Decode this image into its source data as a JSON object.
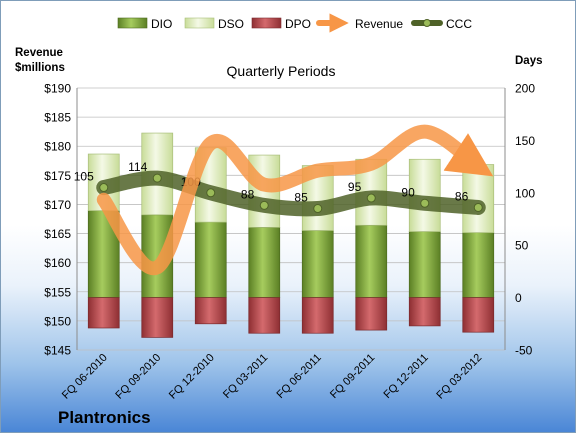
{
  "company": "Plantronics",
  "chart_data": {
    "type": "bar",
    "title": "Quarterly Periods",
    "left_axis_label_line1": "Revenue",
    "left_axis_label_line2": "$millions",
    "right_axis_label": "Days",
    "categories": [
      "FQ 06-2010",
      "FQ 09-2010",
      "FQ 12-2010",
      "FQ 03-2011",
      "FQ 06-2011",
      "FQ 09-2011",
      "FQ 12-2011",
      "FQ 03-2012"
    ],
    "left_ylim": [
      145,
      190
    ],
    "left_ticks": [
      "$145",
      "$150",
      "$155",
      "$160",
      "$165",
      "$170",
      "$175",
      "$180",
      "$185",
      "$190"
    ],
    "right_ylim": [
      -50,
      200
    ],
    "right_ticks": [
      "-50",
      "0",
      "50",
      "100",
      "150",
      "200"
    ],
    "stacked_bars": [
      {
        "name": "DIO",
        "axis": "right",
        "color": "#7aa33a",
        "values": [
          83,
          79,
          72,
          67,
          64,
          69,
          63,
          62
        ]
      },
      {
        "name": "DSO",
        "axis": "right",
        "color": "#e2efc4",
        "values": [
          54,
          78,
          71,
          69,
          62,
          63,
          69,
          65
        ]
      },
      {
        "name": "DPO",
        "axis": "right",
        "color": "#b84a4d",
        "values": [
          -29,
          -38,
          -25,
          -34,
          -34,
          -31,
          -27,
          -33
        ]
      }
    ],
    "series": [
      {
        "name": "Revenue",
        "type": "line",
        "axis": "left",
        "color": "#f79646",
        "values": [
          170.8,
          159.2,
          180.5,
          173.4,
          175.8,
          177.0,
          182.5,
          176.5
        ]
      },
      {
        "name": "CCC",
        "type": "line",
        "axis": "right",
        "color": "#4f6228",
        "values": [
          105,
          114,
          100,
          88,
          85,
          95,
          90,
          86
        ],
        "data_labels": [
          "105",
          "114",
          "100",
          "88",
          "85",
          "95",
          "90",
          "86"
        ]
      }
    ],
    "legend": {
      "position": "top",
      "entries": [
        "DIO",
        "DSO",
        "DPO",
        "Revenue",
        "CCC"
      ]
    },
    "grid": true
  }
}
